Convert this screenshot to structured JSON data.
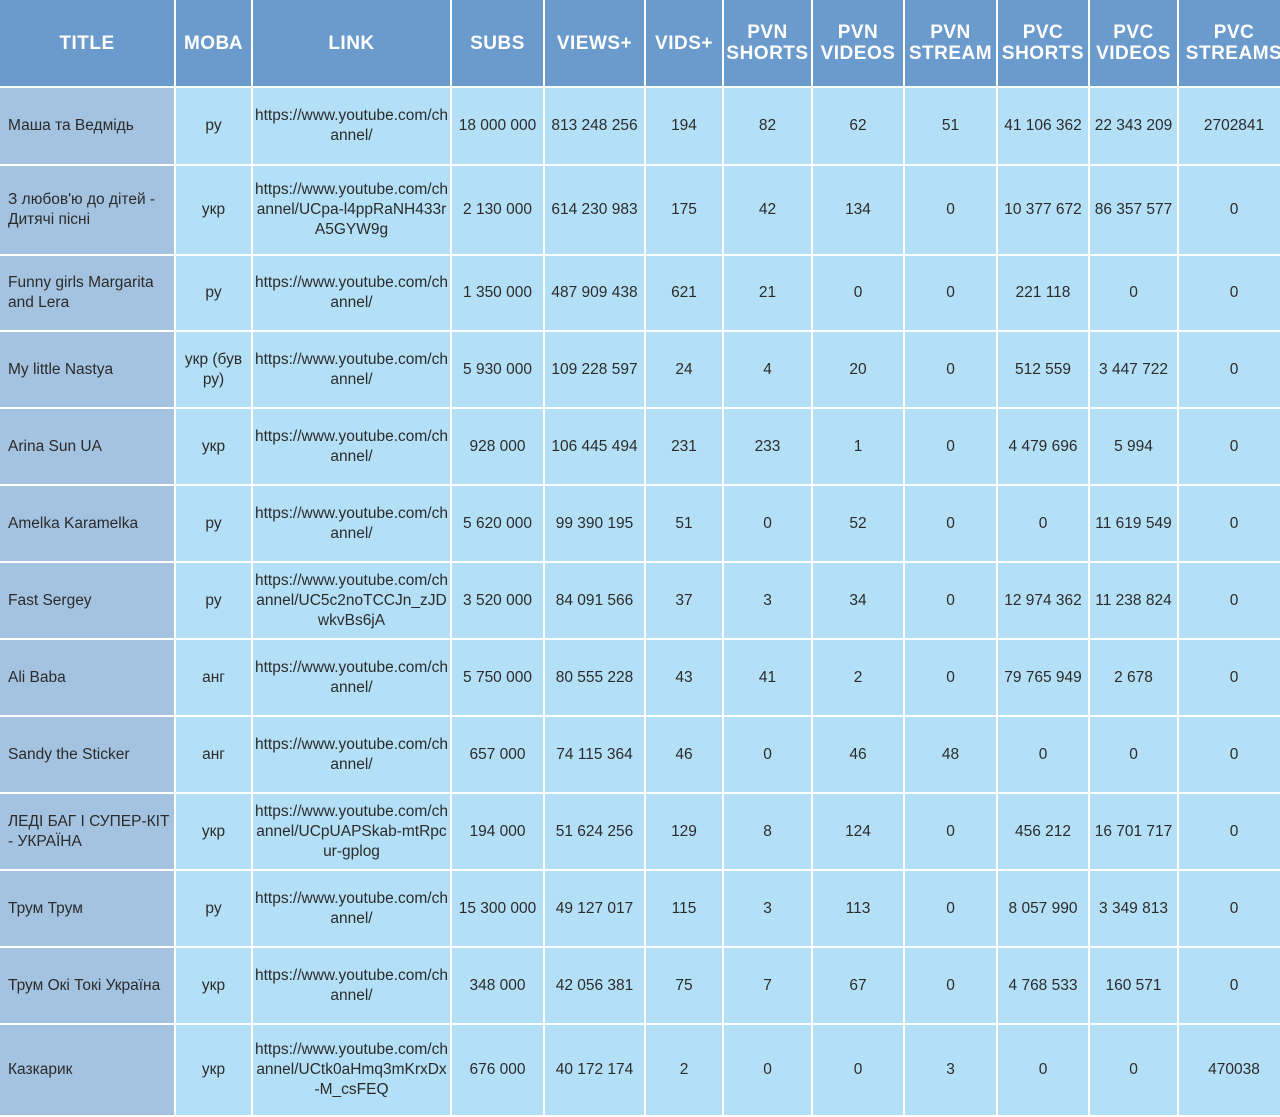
{
  "colors": {
    "header_bg": "#6a9bcc",
    "title_col_bg": "#a4c3e1",
    "cell_bg": "#b4e0f7",
    "grid": "#ffffff"
  },
  "columns": [
    "TITLE",
    "МОВА",
    "LINK",
    "SUBS",
    "VIEWS+",
    "VIDS+",
    "PVN\nSHORTS",
    "PVN\nVIDEOS",
    "PVN\nSTREAM",
    "PVC\nSHORTS",
    "PVC\nVIDEOS",
    "PVC\nSTREAMS"
  ],
  "rows": [
    [
      "Маша та Ведмідь",
      "ру",
      "https://www.youtube.com/channel/",
      "18 000 000",
      "813 248 256",
      "194",
      "82",
      "62",
      "51",
      "41 106 362",
      "22 343 209",
      "2702841"
    ],
    [
      "З любов'ю до дітей - Дитячі пісні",
      "укр",
      "https://www.youtube.com/channel/UCpa-l4ppRaNH433rA5GYW9g",
      "2 130 000",
      "614 230 983",
      "175",
      "42",
      "134",
      "0",
      "10 377 672",
      "86 357 577",
      "0"
    ],
    [
      "Funny girls Margarita and Lera",
      "ру",
      "https://www.youtube.com/channel/",
      "1 350 000",
      "487 909 438",
      "621",
      "21",
      "0",
      "0",
      "221 118",
      "0",
      "0"
    ],
    [
      "My little Nastya",
      "укр (був ру)",
      "https://www.youtube.com/channel/",
      "5 930 000",
      "109 228 597",
      "24",
      "4",
      "20",
      "0",
      "512 559",
      "3 447 722",
      "0"
    ],
    [
      "Arina Sun UA",
      "укр",
      "https://www.youtube.com/channel/",
      "928 000",
      "106 445 494",
      "231",
      "233",
      "1",
      "0",
      "4 479 696",
      "5 994",
      "0"
    ],
    [
      "Amelka Karamelka",
      "ру",
      "https://www.youtube.com/channel/",
      "5 620 000",
      "99 390 195",
      "51",
      "0",
      "52",
      "0",
      "0",
      "11 619 549",
      "0"
    ],
    [
      "Fast Sergey",
      "ру",
      "https://www.youtube.com/channel/UC5c2noTCCJn_zJDwkvBs6jA",
      "3 520 000",
      "84 091 566",
      "37",
      "3",
      "34",
      "0",
      "12 974 362",
      "11 238 824",
      "0"
    ],
    [
      "Ali Baba",
      "анг",
      "https://www.youtube.com/channel/",
      "5 750 000",
      "80 555 228",
      "43",
      "41",
      "2",
      "0",
      "79 765 949",
      "2 678",
      "0"
    ],
    [
      "Sandy the Sticker",
      "анг",
      "https://www.youtube.com/channel/",
      "657 000",
      "74 115 364",
      "46",
      "0",
      "46",
      "48",
      "0",
      "0",
      "0"
    ],
    [
      "ЛЕДІ БАГ І СУПЕР-КІТ - УКРАЇНА",
      "укр",
      "https://www.youtube.com/channel/UCpUAPSkab-mtRpcur-gplog",
      "194 000",
      "51 624 256",
      "129",
      "8",
      "124",
      "0",
      "456 212",
      "16 701 717",
      "0"
    ],
    [
      "Трум Трум",
      "ру",
      "https://www.youtube.com/channel/",
      "15 300 000",
      "49 127 017",
      "115",
      "3",
      "113",
      "0",
      "8 057 990",
      "3 349 813",
      "0"
    ],
    [
      "Трум Окі Токі Україна",
      "укр",
      "https://www.youtube.com/channel/",
      "348 000",
      "42 056 381",
      "75",
      "7",
      "67",
      "0",
      "4 768 533",
      "160 571",
      "0"
    ],
    [
      "Казкарик",
      "укр",
      "https://www.youtube.com/channel/UCtk0aHmq3mKrxDx-M_csFEQ",
      "676 000",
      "40 172 174",
      "2",
      "0",
      "0",
      "3",
      "0",
      "0",
      "470038"
    ]
  ]
}
